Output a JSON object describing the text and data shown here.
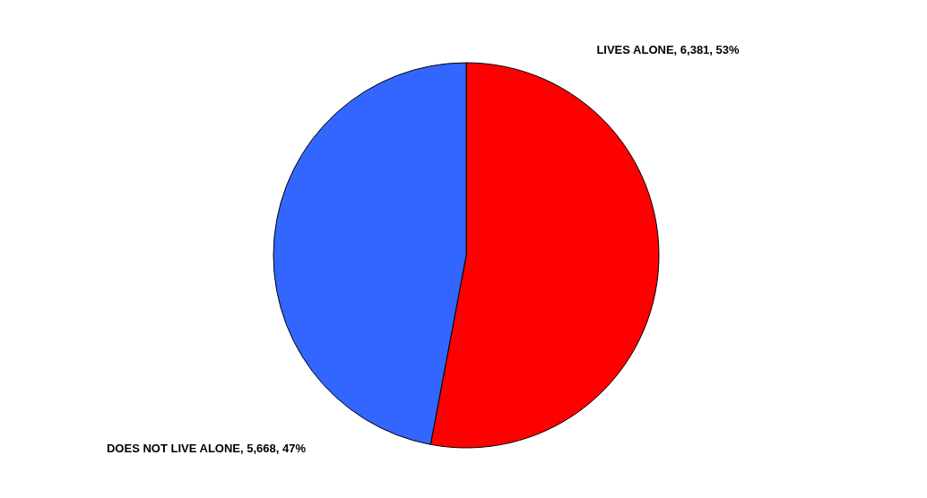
{
  "chart_data": {
    "type": "pie",
    "categories": [
      "LIVES ALONE",
      "DOES NOT LIVE ALONE"
    ],
    "values": [
      6381,
      5668
    ],
    "colors": [
      "#ff0000",
      "#3366ff"
    ],
    "value_labels": [
      "6,381, 53%",
      "5,668, 47%"
    ]
  }
}
